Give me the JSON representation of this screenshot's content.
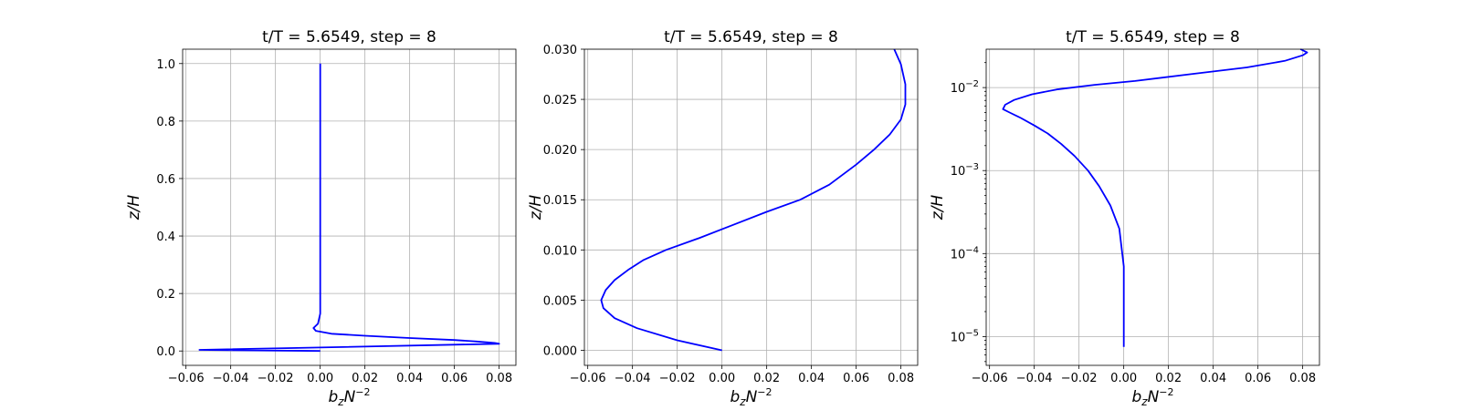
{
  "chart_data": [
    {
      "type": "line",
      "title": "t/T = 5.6549, step = 8",
      "xlabel": "b_zN^{-2}",
      "ylabel": "z/H",
      "xscale": "linear",
      "yscale": "linear",
      "xlim": [
        -0.0615,
        0.0875
      ],
      "ylim": [
        -0.05,
        1.05
      ],
      "xticks": [
        -0.06,
        -0.04,
        -0.02,
        0.0,
        0.02,
        0.04,
        0.06,
        0.08
      ],
      "xticklabels": [
        "−0.06",
        "−0.04",
        "−0.02",
        "0.00",
        "0.02",
        "0.04",
        "0.06",
        "0.08"
      ],
      "yticks": [
        0.0,
        0.2,
        0.4,
        0.6,
        0.8,
        1.0
      ],
      "yticklabels": [
        "0.0",
        "0.2",
        "0.4",
        "0.6",
        "0.8",
        "1.0"
      ],
      "grid": true,
      "series": [
        {
          "color": "#0000ff",
          "x": [
            0.0,
            -0.054,
            0.0,
            0.08,
            0.078,
            0.07,
            0.06,
            0.04,
            0.02,
            0.005,
            -0.002,
            -0.003,
            -0.001,
            0.0,
            0.0,
            0.0,
            0.0
          ],
          "y": [
            0.0,
            0.004,
            0.012,
            0.025,
            0.028,
            0.033,
            0.038,
            0.045,
            0.053,
            0.06,
            0.07,
            0.08,
            0.095,
            0.13,
            0.2,
            0.5,
            1.0
          ]
        }
      ]
    },
    {
      "type": "line",
      "title": "t/T = 5.6549, step = 8",
      "xlabel": "b_zN^{-2}",
      "ylabel": "z/H",
      "xscale": "linear",
      "yscale": "linear",
      "xlim": [
        -0.0615,
        0.0875
      ],
      "ylim": [
        -0.0015,
        0.03
      ],
      "xticks": [
        -0.06,
        -0.04,
        -0.02,
        0.0,
        0.02,
        0.04,
        0.06,
        0.08
      ],
      "xticklabels": [
        "−0.06",
        "−0.04",
        "−0.02",
        "0.00",
        "0.02",
        "0.04",
        "0.06",
        "0.08"
      ],
      "yticks": [
        0.0,
        0.005,
        0.01,
        0.015,
        0.02,
        0.025,
        0.03
      ],
      "yticklabels": [
        "0.000",
        "0.005",
        "0.010",
        "0.015",
        "0.020",
        "0.025",
        "0.030"
      ],
      "grid": true,
      "series": [
        {
          "color": "#0000ff",
          "x": [
            0.0,
            -0.02,
            -0.038,
            -0.048,
            -0.053,
            -0.054,
            -0.052,
            -0.048,
            -0.042,
            -0.035,
            -0.025,
            -0.01,
            0.005,
            0.02,
            0.035,
            0.048,
            0.06,
            0.068,
            0.075,
            0.08,
            0.082,
            0.082,
            0.08,
            0.077
          ],
          "y": [
            0.0,
            0.001,
            0.0022,
            0.0032,
            0.0042,
            0.005,
            0.006,
            0.007,
            0.008,
            0.009,
            0.01,
            0.0112,
            0.0125,
            0.0138,
            0.015,
            0.0165,
            0.0185,
            0.02,
            0.0215,
            0.023,
            0.0245,
            0.0265,
            0.0285,
            0.03
          ]
        }
      ]
    },
    {
      "type": "line",
      "title": "t/T = 5.6549, step = 8",
      "xlabel": "b_zN^{-2}",
      "ylabel": "z/H",
      "xscale": "linear",
      "yscale": "log",
      "xlim": [
        -0.0615,
        0.0875
      ],
      "ylim": [
        4.5e-06,
        0.029
      ],
      "xticks": [
        -0.06,
        -0.04,
        -0.02,
        0.0,
        0.02,
        0.04,
        0.06,
        0.08
      ],
      "xticklabels": [
        "−0.06",
        "−0.04",
        "−0.02",
        "0.00",
        "0.02",
        "0.04",
        "0.06",
        "0.08"
      ],
      "yticks": [
        1e-05,
        0.0001,
        0.001,
        0.01
      ],
      "yticklabels": [
        {
          "base": "10",
          "exp": "−5"
        },
        {
          "base": "10",
          "exp": "−4"
        },
        {
          "base": "10",
          "exp": "−3"
        },
        {
          "base": "10",
          "exp": "−2"
        }
      ],
      "grid": true,
      "series": [
        {
          "color": "#0000ff",
          "x": [
            0.0,
            0.0,
            -0.002,
            -0.006,
            -0.011,
            -0.016,
            -0.022,
            -0.028,
            -0.034,
            -0.04,
            -0.046,
            -0.051,
            -0.054,
            -0.053,
            -0.049,
            -0.041,
            -0.03,
            -0.013,
            0.005,
            0.03,
            0.055,
            0.072,
            0.08,
            0.082,
            0.079
          ],
          "y": [
            7.5e-06,
            7e-05,
            0.0002,
            0.00038,
            0.00065,
            0.001,
            0.0015,
            0.0021,
            0.0028,
            0.0035,
            0.0043,
            0.005,
            0.0055,
            0.0062,
            0.0071,
            0.0083,
            0.0095,
            0.0108,
            0.012,
            0.0145,
            0.0175,
            0.021,
            0.0245,
            0.0265,
            0.029
          ]
        }
      ]
    }
  ]
}
